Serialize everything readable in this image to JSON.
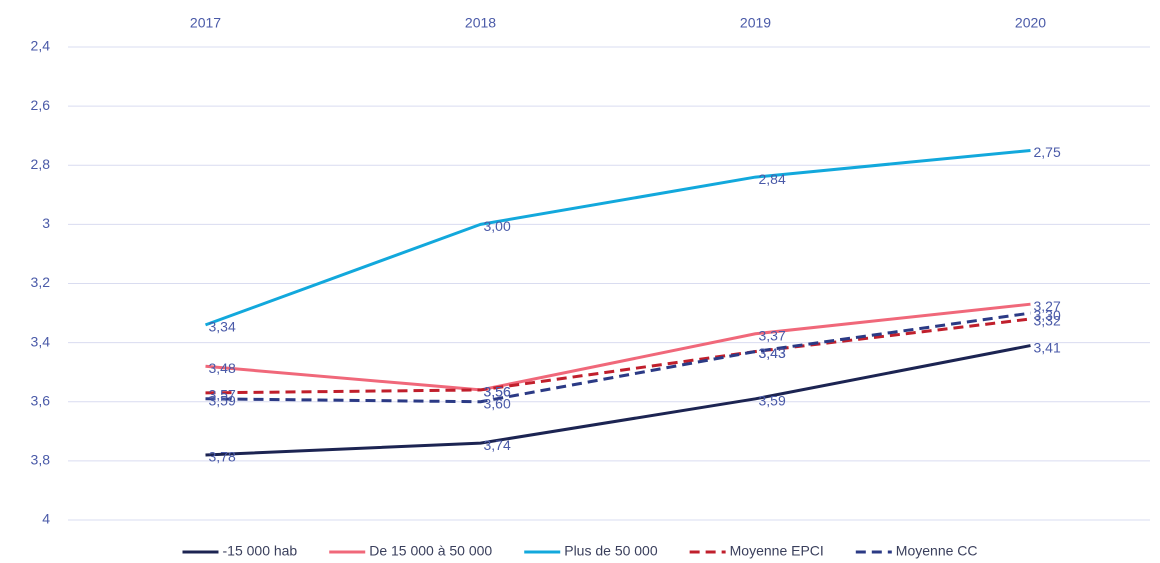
{
  "chart_data": {
    "type": "line",
    "categories": [
      "2017",
      "2018",
      "2019",
      "2020"
    ],
    "ylim": [
      2.4,
      4
    ],
    "y_reversed": true,
    "yticks": [
      {
        "value": 2.4,
        "label": "2,4"
      },
      {
        "value": 2.6,
        "label": "2,6"
      },
      {
        "value": 2.8,
        "label": "2,8"
      },
      3,
      {
        "value": 3.2,
        "label": "3,2"
      },
      {
        "value": 3.4,
        "label": "3,4"
      },
      {
        "value": 3.6,
        "label": "3,6"
      },
      {
        "value": 3.8,
        "label": "3,8"
      },
      4
    ],
    "grid": true,
    "legend": "bottom",
    "series": [
      {
        "name": "-15 000 hab",
        "color": "#1c2452",
        "dashed": false,
        "values": [
          3.78,
          3.74,
          3.59,
          3.41
        ],
        "value_labels": [
          "3,78",
          "3,74",
          "3,59",
          "3,41"
        ]
      },
      {
        "name": "De 15 000 à 50 000",
        "color": "#f0687a",
        "dashed": false,
        "values": [
          3.48,
          3.56,
          3.37,
          3.27
        ],
        "value_labels": [
          "3,48",
          "3,56",
          "3,37",
          "3,27"
        ]
      },
      {
        "name": "Plus de 50 000",
        "color": "#12a8dc",
        "dashed": false,
        "values": [
          3.34,
          3.0,
          2.84,
          2.75
        ],
        "value_labels": [
          "3,34",
          "3,00",
          "2,84",
          "2,75"
        ]
      },
      {
        "name": "Moyenne EPCI",
        "color": "#c01f2c",
        "dashed": true,
        "values": [
          3.57,
          3.56,
          3.43,
          3.32
        ],
        "value_labels": [
          "3,57",
          "3,56",
          "3,43",
          "3,32"
        ]
      },
      {
        "name": "Moyenne CC",
        "color": "#2b3a85",
        "dashed": true,
        "values": [
          3.59,
          3.6,
          3.43,
          3.3
        ],
        "value_labels": [
          "3,59",
          "3,60",
          "3,43",
          "3,30"
        ]
      }
    ]
  }
}
